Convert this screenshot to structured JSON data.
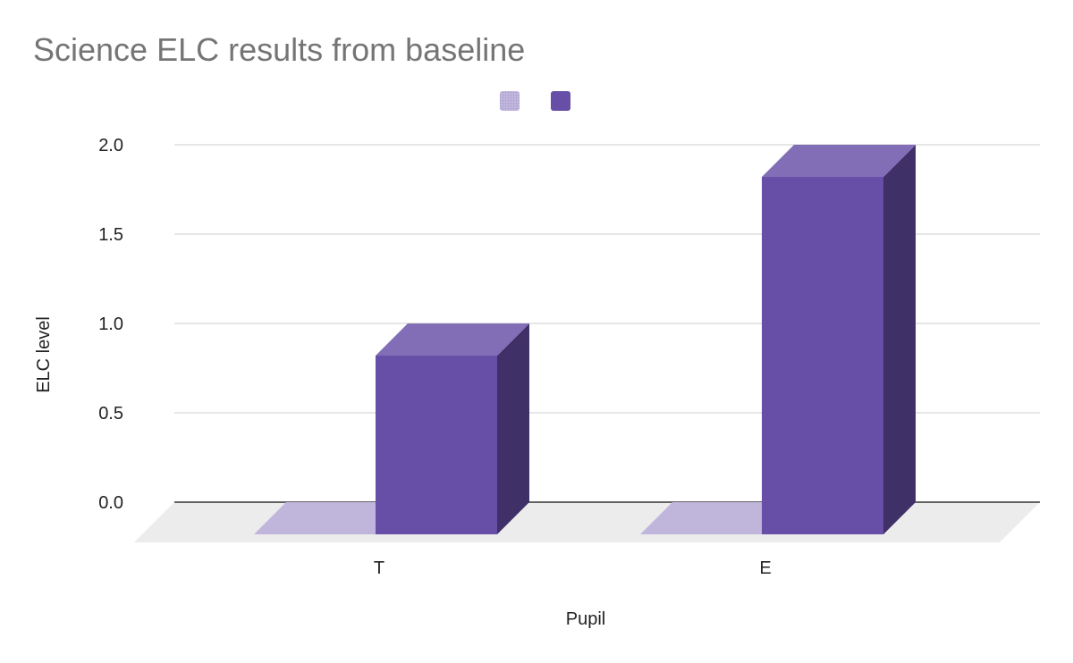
{
  "chart_data": {
    "type": "bar",
    "title": "Science ELC results from baseline",
    "xlabel": "Pupil",
    "ylabel": "ELC level",
    "categories": [
      "T",
      "E"
    ],
    "series": [
      {
        "values": [
          0,
          0
        ],
        "color": "#c0b6dc"
      },
      {
        "values": [
          1,
          2
        ],
        "color": "#674ea7"
      }
    ],
    "ylim": [
      0,
      2
    ],
    "yticks": [
      "0.0",
      "0.5",
      "1.0",
      "1.5",
      "2.0"
    ],
    "grid": true,
    "legend_position": "top",
    "style": "3d"
  }
}
